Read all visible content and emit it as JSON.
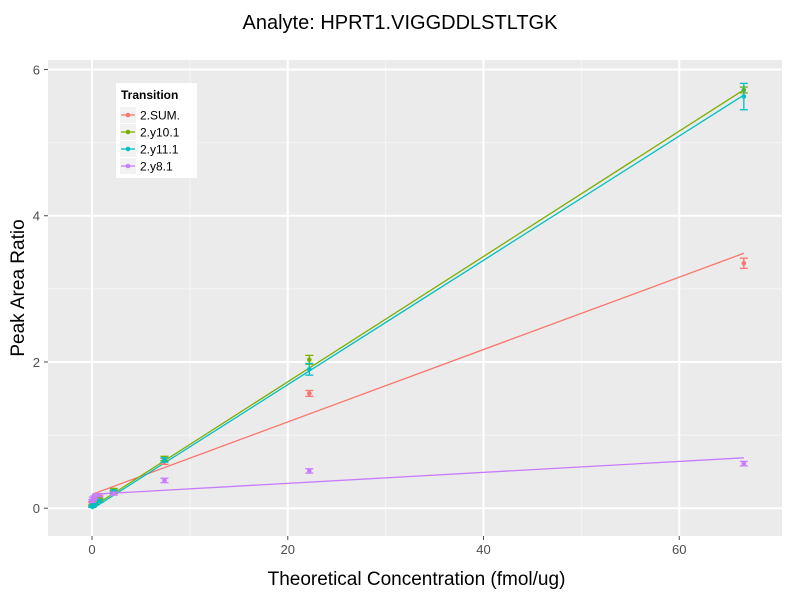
{
  "chart_data": {
    "type": "scatter",
    "title": "Analyte: HPRT1.VIGGDDLSTLTGK",
    "xlabel": "Theoretical Concentration (fmol/ug)",
    "ylabel": "Peak Area Ratio",
    "xlim": [
      -4.5,
      70.5
    ],
    "ylim": [
      -0.38,
      6.13
    ],
    "xticks": [
      0,
      20,
      40,
      60
    ],
    "xtick_labels": [
      "0",
      "20",
      "40",
      "60"
    ],
    "yticks": [
      0,
      2,
      4,
      6
    ],
    "ytick_labels": [
      "0",
      "2",
      "4",
      "6"
    ],
    "grid": true,
    "legend": {
      "title": "Transition",
      "position": "top-left"
    },
    "x": [
      0.027,
      0.082,
      0.247,
      0.74,
      2.22,
      7.4,
      22.2,
      66.6
    ],
    "series": [
      {
        "name": "2.SUM.",
        "color": "#f8766d",
        "values": [
          0.07,
          0.08,
          0.1,
          0.15,
          0.22,
          0.64,
          1.57,
          3.35
        ],
        "errors": [
          0.02,
          0.02,
          0.02,
          0.02,
          0.02,
          0.04,
          0.04,
          0.07
        ],
        "fit": {
          "slope": 0.0495,
          "intercept": 0.19
        }
      },
      {
        "name": "2.y10.1",
        "color": "#7cae00",
        "values": [
          0.03,
          0.04,
          0.06,
          0.12,
          0.25,
          0.68,
          2.03,
          5.72
        ],
        "errors": [
          0.01,
          0.01,
          0.01,
          0.02,
          0.02,
          0.03,
          0.06,
          0.04
        ],
        "fit": {
          "slope": 0.0857,
          "intercept": 0.015
        }
      },
      {
        "name": "2.y11.1",
        "color": "#00bfc4",
        "values": [
          0.02,
          0.03,
          0.05,
          0.1,
          0.23,
          0.66,
          1.9,
          5.63
        ],
        "errors": [
          0.01,
          0.01,
          0.01,
          0.02,
          0.02,
          0.03,
          0.08,
          0.18
        ],
        "fit": {
          "slope": 0.085,
          "intercept": -0.01
        }
      },
      {
        "name": "2.y8.1",
        "color": "#c77cff",
        "values": [
          0.1,
          0.13,
          0.15,
          0.18,
          0.2,
          0.38,
          0.51,
          0.61
        ],
        "errors": [
          0.02,
          0.02,
          0.02,
          0.02,
          0.02,
          0.03,
          0.03,
          0.03
        ],
        "fit": {
          "slope": 0.0075,
          "intercept": 0.19
        }
      }
    ]
  }
}
